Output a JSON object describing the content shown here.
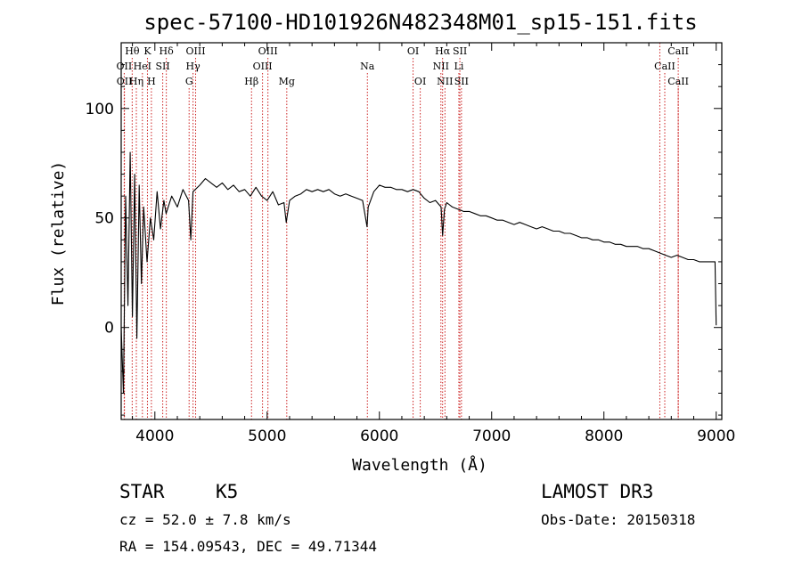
{
  "chart_data": {
    "type": "line",
    "title": "spec-57100-HD101926N482348M01_sp15-151.fits",
    "xlabel": "Wavelength (Å)",
    "ylabel": "Flux (relative)",
    "xlim": [
      3700,
      9050
    ],
    "ylim": [
      -42,
      130
    ],
    "xticks": [
      4000,
      5000,
      6000,
      7000,
      8000,
      9000
    ],
    "yticks": [
      0,
      50,
      100
    ],
    "series": [
      {
        "name": "flux",
        "x": [
          3700,
          3720,
          3740,
          3760,
          3780,
          3800,
          3820,
          3840,
          3860,
          3880,
          3900,
          3930,
          3960,
          3990,
          4020,
          4050,
          4080,
          4100,
          4150,
          4200,
          4250,
          4300,
          4320,
          4340,
          4400,
          4450,
          4500,
          4550,
          4600,
          4650,
          4700,
          4750,
          4800,
          4850,
          4900,
          4950,
          5000,
          5050,
          5100,
          5150,
          5170,
          5200,
          5250,
          5300,
          5350,
          5400,
          5450,
          5500,
          5550,
          5600,
          5650,
          5700,
          5750,
          5800,
          5850,
          5890,
          5900,
          5950,
          6000,
          6050,
          6100,
          6150,
          6200,
          6250,
          6300,
          6350,
          6400,
          6450,
          6500,
          6550,
          6563,
          6580,
          6600,
          6650,
          6700,
          6750,
          6800,
          6850,
          6900,
          6950,
          7000,
          7050,
          7100,
          7150,
          7200,
          7250,
          7300,
          7350,
          7400,
          7450,
          7500,
          7550,
          7600,
          7650,
          7700,
          7750,
          7800,
          7850,
          7900,
          7950,
          8000,
          8050,
          8100,
          8150,
          8200,
          8250,
          8300,
          8350,
          8400,
          8450,
          8500,
          8550,
          8600,
          8650,
          8700,
          8750,
          8800,
          8850,
          8900,
          8950,
          8990,
          9000
        ],
        "values": [
          0,
          -30,
          60,
          10,
          80,
          5,
          70,
          -5,
          65,
          20,
          55,
          30,
          50,
          40,
          62,
          45,
          58,
          52,
          60,
          55,
          63,
          58,
          40,
          62,
          65,
          68,
          66,
          64,
          66,
          63,
          65,
          62,
          63,
          60,
          64,
          60,
          58,
          62,
          56,
          57,
          48,
          58,
          60,
          61,
          63,
          62,
          63,
          62,
          63,
          61,
          60,
          61,
          60,
          59,
          58,
          46,
          55,
          62,
          65,
          64,
          64,
          63,
          63,
          62,
          63,
          62,
          59,
          57,
          58,
          55,
          42,
          54,
          57,
          55,
          54,
          53,
          53,
          52,
          51,
          51,
          50,
          49,
          49,
          48,
          47,
          48,
          47,
          46,
          45,
          46,
          45,
          44,
          44,
          43,
          43,
          42,
          41,
          41,
          40,
          40,
          39,
          39,
          38,
          38,
          37,
          37,
          37,
          36,
          36,
          35,
          34,
          33,
          32,
          33,
          32,
          31,
          31,
          30,
          30,
          30,
          30,
          1
        ]
      }
    ],
    "line_markers": [
      {
        "label": "Hθ",
        "x": 3798,
        "row": 1
      },
      {
        "label": "OII",
        "x": 3727,
        "row": 2
      },
      {
        "label": "OII",
        "x": 3729,
        "row": 3
      },
      {
        "label": "HeI",
        "x": 3889,
        "row": 2
      },
      {
        "label": "K",
        "x": 3934,
        "row": 1
      },
      {
        "label": "Hη",
        "x": 3835,
        "row": 3
      },
      {
        "label": "SII",
        "x": 4070,
        "row": 2
      },
      {
        "label": "H",
        "x": 3969,
        "row": 3
      },
      {
        "label": "Hδ",
        "x": 4102,
        "row": 1
      },
      {
        "label": "OIII",
        "x": 4363,
        "row": 1
      },
      {
        "label": "Hγ",
        "x": 4340,
        "row": 2
      },
      {
        "label": "G",
        "x": 4305,
        "row": 3
      },
      {
        "label": "Hβ",
        "x": 4861,
        "row": 3
      },
      {
        "label": "OIII",
        "x": 5007,
        "row": 1
      },
      {
        "label": "OIII",
        "x": 4959,
        "row": 2
      },
      {
        "label": "Mg",
        "x": 5175,
        "row": 3
      },
      {
        "label": "Na",
        "x": 5893,
        "row": 2
      },
      {
        "label": "OI",
        "x": 6300,
        "row": 1
      },
      {
        "label": "OI",
        "x": 6364,
        "row": 3
      },
      {
        "label": "Hα",
        "x": 6563,
        "row": 1
      },
      {
        "label": "NII",
        "x": 6548,
        "row": 2
      },
      {
        "label": "NII",
        "x": 6584,
        "row": 3
      },
      {
        "label": "SII",
        "x": 6717,
        "row": 1
      },
      {
        "label": "Li",
        "x": 6708,
        "row": 2
      },
      {
        "label": "SII",
        "x": 6731,
        "row": 3
      },
      {
        "label": "CaII",
        "x": 8662,
        "row": 1
      },
      {
        "label": "CaII",
        "x": 8542,
        "row": 2
      },
      {
        "label": "CaII",
        "x": 8662,
        "row": 3
      },
      {
        "label": "",
        "x": 8498,
        "row": 0
      }
    ]
  },
  "info": {
    "class": "STAR",
    "subclass": "K5",
    "survey": "LAMOST DR3",
    "cz": "cz = 52.0 ± 7.8 km/s",
    "obs_date": "Obs-Date: 20150318",
    "coords": "RA = 154.09543, DEC =  49.71344"
  },
  "colors": {
    "background": "#ffffff",
    "ink": "#000000",
    "marker_line": "#cc2222"
  }
}
